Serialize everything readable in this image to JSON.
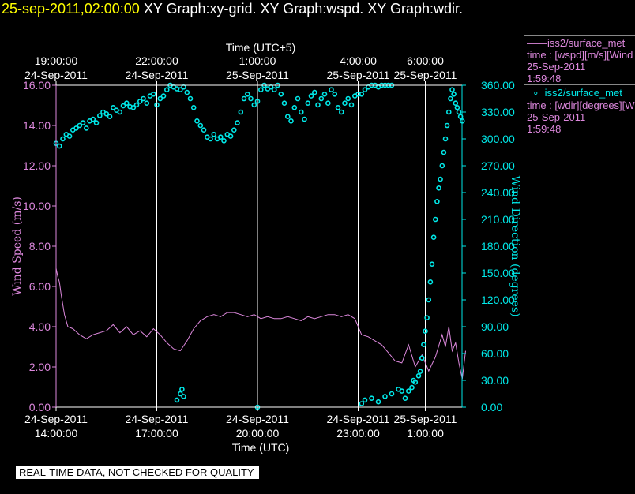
{
  "title": {
    "time": "25-sep-2011,02:00:00",
    "rest": "  XY Graph:xy-grid.  XY Graph:wspd.  XY Graph:wdir."
  },
  "footer_note": "REAL-TIME DATA, NOT CHECKED FOR QUALITY",
  "legend": [
    {
      "label": "iss2/surface_met",
      "line1": "time : [wspd][m/s][Wind",
      "line2": "25-Sep-2011",
      "line3": "1:59:48",
      "color": "#dd88dd"
    },
    {
      "label": "iss2/surface_met",
      "line1": "time : [wdir][degrees][W",
      "line2": "25-Sep-2011",
      "line3": "1:59:48",
      "color": "#00e8e8"
    }
  ],
  "colors": {
    "wspd": "#dd88dd",
    "wdir": "#00e8e8",
    "axis": "#ffffff"
  },
  "chart_data": {
    "type": "line",
    "xlabel_bottom": "Time (UTC)",
    "xlabel_top": "Time (UTC+5)",
    "ylabel_left": "Wind  Speed  (m/s)",
    "ylabel_right": "Wind  Direction  (degrees)",
    "xlim_hours": [
      0,
      12.3
    ],
    "ylim_left": [
      0,
      16
    ],
    "ylim_right": [
      0,
      360
    ],
    "y_ticks_left": [
      "0.00",
      "2.00",
      "4.00",
      "6.00",
      "8.00",
      "10.00",
      "12.00",
      "14.00",
      "16.00"
    ],
    "y_ticks_right": [
      "0.00",
      "30.00",
      "60.00",
      "90.00",
      "120.00",
      "150.00",
      "180.00",
      "210.00",
      "240.00",
      "270.00",
      "300.00",
      "330.00",
      "360.00"
    ],
    "x_ticks_bottom": [
      {
        "h": 0,
        "l1": "24-Sep-2011",
        "l2": "14:00:00"
      },
      {
        "h": 3,
        "l1": "24-Sep-2011",
        "l2": "17:00:00"
      },
      {
        "h": 6,
        "l1": "24-Sep-2011",
        "l2": "20:00:00"
      },
      {
        "h": 9,
        "l1": "24-Sep-2011",
        "l2": "23:00:00"
      },
      {
        "h": 11,
        "l1": "25-Sep-2011",
        "l2": "1:00:00"
      }
    ],
    "x_ticks_top": [
      {
        "h": 0,
        "l1": "19:00:00",
        "l2": "24-Sep-2011"
      },
      {
        "h": 3,
        "l1": "22:00:00",
        "l2": "24-Sep-2011"
      },
      {
        "h": 6,
        "l1": "1:00:00",
        "l2": "25-Sep-2011"
      },
      {
        "h": 9,
        "l1": "4:00:00",
        "l2": "25-Sep-2011"
      },
      {
        "h": 11,
        "l1": "6:00:00",
        "l2": "25-Sep-2011"
      }
    ],
    "series": [
      {
        "name": "iss2/surface_met",
        "axis": "left",
        "kind": "line",
        "x": [
          0,
          0.05,
          0.1,
          0.15,
          0.25,
          0.35,
          0.5,
          0.7,
          0.9,
          1.1,
          1.3,
          1.5,
          1.7,
          1.9,
          2.1,
          2.3,
          2.5,
          2.7,
          2.9,
          3.1,
          3.3,
          3.5,
          3.7,
          3.9,
          4.1,
          4.3,
          4.5,
          4.7,
          4.9,
          5.1,
          5.3,
          5.5,
          5.7,
          5.9,
          6.1,
          6.3,
          6.5,
          6.7,
          6.9,
          7.1,
          7.3,
          7.5,
          7.7,
          7.9,
          8.1,
          8.3,
          8.5,
          8.7,
          8.9,
          9.1,
          9.3,
          9.5,
          9.7,
          9.9,
          10.1,
          10.3,
          10.5,
          10.7,
          10.9,
          11.1,
          11.3,
          11.5,
          11.6,
          11.7,
          11.8,
          11.9,
          12.0,
          12.1,
          12.2
        ],
        "y": [
          6.9,
          6.5,
          6.2,
          5.6,
          4.6,
          4.0,
          3.9,
          3.6,
          3.4,
          3.6,
          3.7,
          3.8,
          4.1,
          3.7,
          4.0,
          3.6,
          3.8,
          3.5,
          3.9,
          3.6,
          3.2,
          2.9,
          2.8,
          3.3,
          3.9,
          4.3,
          4.5,
          4.6,
          4.5,
          4.7,
          4.7,
          4.6,
          4.5,
          4.6,
          4.4,
          4.5,
          4.4,
          4.4,
          4.5,
          4.4,
          4.3,
          4.5,
          4.4,
          4.5,
          4.6,
          4.6,
          4.5,
          4.6,
          4.4,
          3.6,
          3.5,
          3.3,
          3.1,
          2.7,
          2.3,
          2.2,
          3.1,
          2.0,
          2.6,
          1.8,
          2.5,
          3.6,
          3.0,
          4.0,
          2.8,
          3.2,
          2.2,
          1.4,
          2.8
        ]
      },
      {
        "name": "iss2/surface_met",
        "axis": "right",
        "kind": "scatter",
        "x": [
          0,
          0.1,
          0.2,
          0.3,
          0.4,
          0.5,
          0.6,
          0.7,
          0.8,
          0.9,
          1.0,
          1.1,
          1.2,
          1.3,
          1.4,
          1.5,
          1.6,
          1.7,
          1.8,
          1.9,
          2.0,
          2.1,
          2.2,
          2.3,
          2.4,
          2.5,
          2.6,
          2.7,
          2.8,
          2.9,
          3.0,
          3.1,
          3.2,
          3.3,
          3.4,
          3.5,
          3.6,
          3.7,
          3.8,
          3.9,
          4.0,
          4.1,
          4.2,
          4.3,
          4.4,
          4.5,
          4.6,
          4.7,
          4.8,
          4.9,
          5.0,
          5.1,
          5.2,
          5.3,
          5.4,
          5.5,
          5.6,
          5.7,
          5.8,
          5.9,
          6.0,
          6.1,
          6.2,
          6.3,
          6.4,
          6.5,
          6.6,
          6.7,
          6.8,
          6.9,
          7.0,
          7.1,
          7.2,
          7.3,
          7.4,
          7.5,
          7.6,
          7.7,
          7.8,
          7.9,
          8.0,
          8.1,
          8.2,
          8.3,
          8.4,
          8.5,
          8.6,
          8.7,
          8.8,
          8.9,
          9.0,
          9.1,
          9.2,
          9.3,
          9.4,
          9.5,
          9.6,
          9.7,
          9.8,
          9.9,
          10.0,
          3.6,
          3.7,
          3.75,
          3.8,
          6.0,
          9.1,
          9.2,
          9.4,
          9.6,
          9.8,
          10.0,
          10.2,
          10.3,
          10.4,
          10.5,
          10.6,
          10.65,
          10.7,
          10.8,
          10.85,
          10.9,
          10.95,
          11.0,
          11.05,
          11.1,
          11.15,
          11.2,
          11.25,
          11.3,
          11.35,
          11.4,
          11.45,
          11.5,
          11.55,
          11.6,
          11.65,
          11.7,
          11.75,
          11.8,
          11.85,
          11.9,
          11.95,
          12.0,
          12.05,
          12.1
        ],
        "y": [
          295,
          292,
          300,
          305,
          303,
          310,
          312,
          315,
          318,
          312,
          320,
          322,
          318,
          326,
          330,
          328,
          325,
          335,
          332,
          330,
          337,
          340,
          336,
          335,
          338,
          342,
          345,
          340,
          348,
          350,
          338,
          345,
          348,
          355,
          360,
          358,
          356,
          355,
          358,
          352,
          345,
          335,
          320,
          315,
          310,
          302,
          300,
          305,
          300,
          302,
          298,
          305,
          303,
          310,
          318,
          330,
          345,
          350,
          345,
          338,
          342,
          355,
          360,
          356,
          358,
          355,
          360,
          350,
          340,
          325,
          320,
          335,
          345,
          330,
          322,
          340,
          348,
          352,
          338,
          345,
          350,
          340,
          355,
          350,
          335,
          330,
          340,
          345,
          338,
          348,
          350,
          350,
          355,
          358,
          360,
          360,
          358,
          360,
          360,
          360,
          360,
          8,
          15,
          20,
          12,
          0,
          4,
          8,
          10,
          6,
          12,
          15,
          20,
          18,
          10,
          18,
          22,
          30,
          28,
          35,
          40,
          55,
          70,
          85,
          100,
          120,
          140,
          160,
          190,
          210,
          230,
          245,
          255,
          270,
          285,
          300,
          315,
          330,
          345,
          355,
          350,
          340,
          335,
          330,
          325,
          320
        ]
      }
    ]
  }
}
